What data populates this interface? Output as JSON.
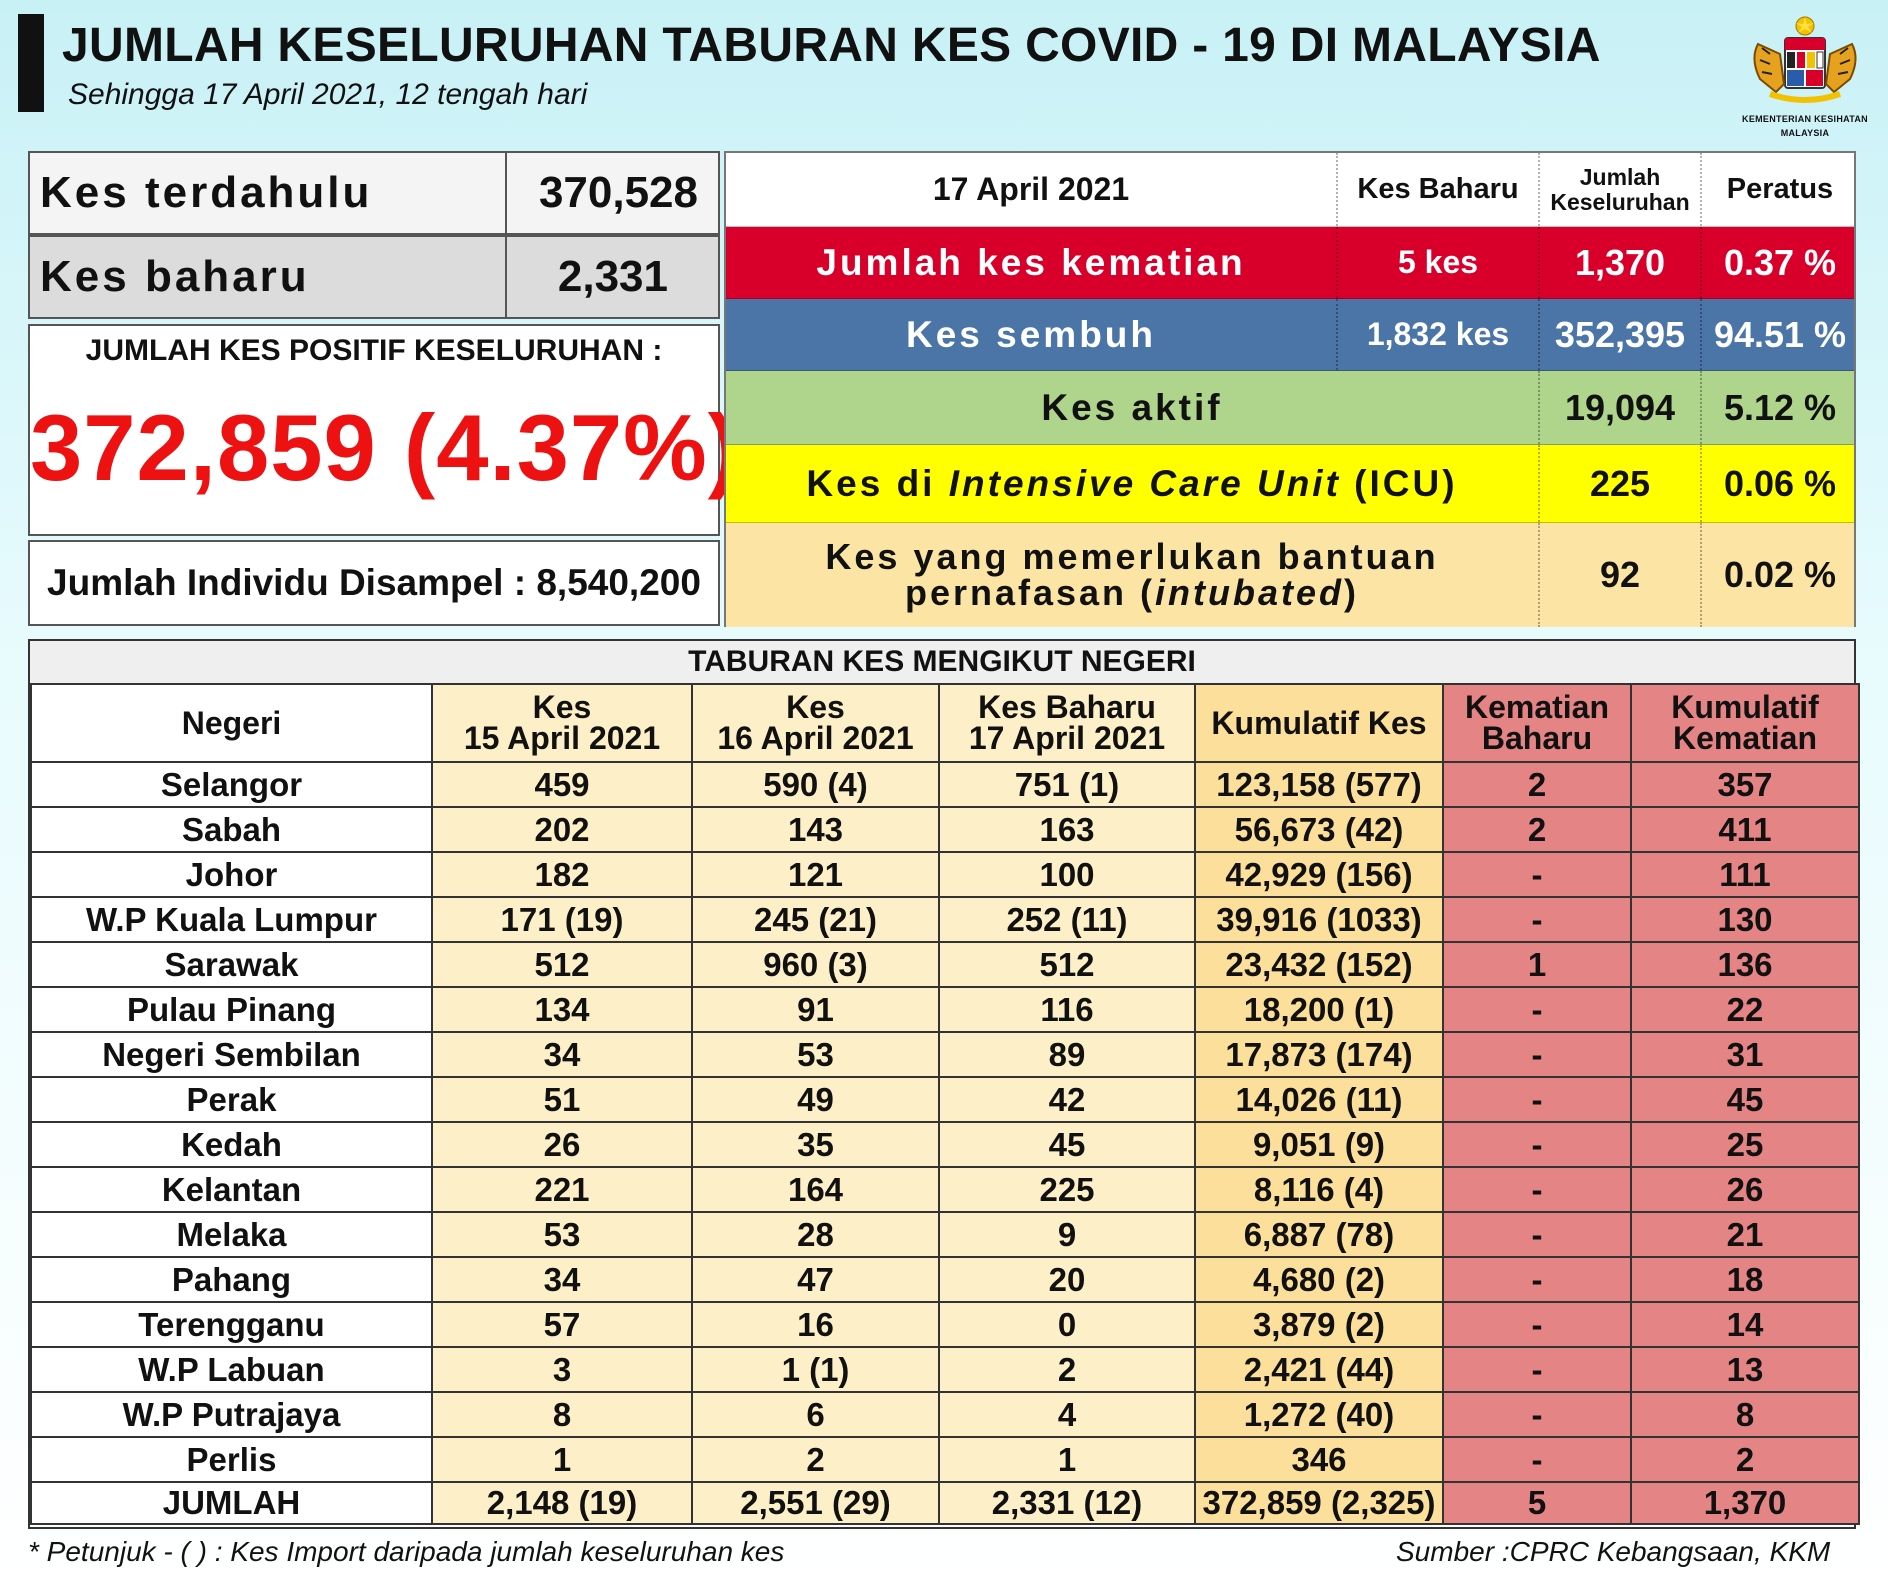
{
  "header": {
    "title": "JUMLAH KESELURUHAN TABURAN KES COVID - 19 DI MALAYSIA",
    "subtitle": "Sehingga 17 April 2021, 12 tengah hari",
    "logo_text_1": "KEMENTERIAN KESIHATAN",
    "logo_text_2": "MALAYSIA"
  },
  "summary": {
    "prev_label": "Kes terdahulu",
    "prev_value": "370,528",
    "new_label": "Kes baharu",
    "new_value": "2,331",
    "total_label": "JUMLAH KES POSITIF KESELURUHAN :",
    "total_value": "372,859 (4.37%)",
    "sampled_text": "Jumlah Individu Disampel : 8,540,200"
  },
  "status": {
    "header": {
      "date": "17 April 2021",
      "new": "Kes Baharu",
      "total_line1": "Jumlah",
      "total_line2": "Keseluruhan",
      "pct": "Peratus"
    },
    "death": {
      "label": "Jumlah kes kematian",
      "new": "5 kes",
      "total": "1,370",
      "pct": "0.37 %"
    },
    "recovered": {
      "label": "Kes sembuh",
      "new": "1,832 kes",
      "total": "352,395",
      "pct": "94.51 %"
    },
    "active": {
      "label": "Kes aktif",
      "total": "19,094",
      "pct": "5.12 %"
    },
    "icu": {
      "label_pre": "Kes di ",
      "label_italic": "Intensive Care Unit",
      "label_post": " (ICU)",
      "total": "225",
      "pct": "0.06 %"
    },
    "intubated": {
      "line1": "Kes yang memerlukan bantuan",
      "line2_pre": "pernafasan (",
      "line2_italic": "intubated",
      "line2_post": ")",
      "total": "92",
      "pct": "0.02 %"
    },
    "colors": {
      "death": "#d8002a",
      "recovered": "#4a75a6",
      "active": "#aed58b",
      "icu": "#ffff00",
      "intubated": "#fbe4a4"
    }
  },
  "states": {
    "title": "TABURAN KES MENGIKUT NEGERI",
    "columns": [
      {
        "l1": "Negeri",
        "l2": ""
      },
      {
        "l1": "Kes",
        "l2": "15 April 2021"
      },
      {
        "l1": "Kes",
        "l2": "16 April 2021"
      },
      {
        "l1": "Kes Baharu",
        "l2": "17 April 2021"
      },
      {
        "l1": "Kumulatif Kes",
        "l2": ""
      },
      {
        "l1": "Kematian",
        "l2": "Baharu"
      },
      {
        "l1": "Kumulatif",
        "l2": "Kematian"
      }
    ],
    "rows": [
      [
        "Selangor",
        "459",
        "590 (4)",
        "751 (1)",
        "123,158 (577)",
        "2",
        "357"
      ],
      [
        "Sabah",
        "202",
        "143",
        "163",
        "56,673 (42)",
        "2",
        "411"
      ],
      [
        "Johor",
        "182",
        "121",
        "100",
        "42,929 (156)",
        "-",
        "111"
      ],
      [
        "W.P Kuala Lumpur",
        "171 (19)",
        "245 (21)",
        "252 (11)",
        "39,916 (1033)",
        "-",
        "130"
      ],
      [
        "Sarawak",
        "512",
        "960 (3)",
        "512",
        "23,432 (152)",
        "1",
        "136"
      ],
      [
        "Pulau Pinang",
        "134",
        "91",
        "116",
        "18,200 (1)",
        "-",
        "22"
      ],
      [
        "Negeri Sembilan",
        "34",
        "53",
        "89",
        "17,873 (174)",
        "-",
        "31"
      ],
      [
        "Perak",
        "51",
        "49",
        "42",
        "14,026 (11)",
        "-",
        "45"
      ],
      [
        "Kedah",
        "26",
        "35",
        "45",
        "9,051 (9)",
        "-",
        "25"
      ],
      [
        "Kelantan",
        "221",
        "164",
        "225",
        "8,116 (4)",
        "-",
        "26"
      ],
      [
        "Melaka",
        "53",
        "28",
        "9",
        "6,887 (78)",
        "-",
        "21"
      ],
      [
        "Pahang",
        "34",
        "47",
        "20",
        "4,680 (2)",
        "-",
        "18"
      ],
      [
        "Terengganu",
        "57",
        "16",
        "0",
        "3,879 (2)",
        "-",
        "14"
      ],
      [
        "W.P Labuan",
        "3",
        "1 (1)",
        "2",
        "2,421 (44)",
        "-",
        "13"
      ],
      [
        "W.P Putrajaya",
        "8",
        "6",
        "4",
        "1,272 (40)",
        "-",
        "8"
      ],
      [
        "Perlis",
        "1",
        "2",
        "1",
        "346",
        "-",
        "2"
      ]
    ],
    "total_row": [
      "JUMLAH",
      "2,148 (19)",
      "2,551 (29)",
      "2,331 (12)",
      "372,859 (2,325)",
      "5",
      "1,370"
    ]
  },
  "footer": {
    "note": "* Petunjuk  - (  ) : Kes Import daripada jumlah keseluruhan kes",
    "source": "Sumber :CPRC Kebangsaan,  KKM"
  }
}
